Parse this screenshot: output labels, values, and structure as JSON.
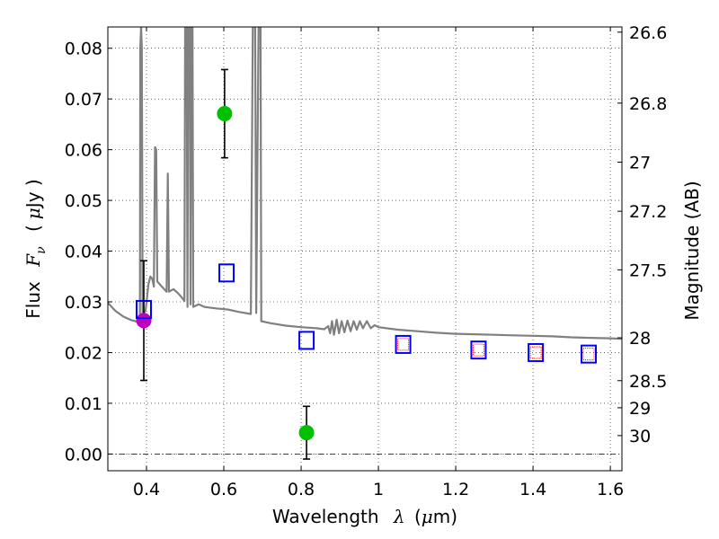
{
  "chart_data": {
    "type": "scatter",
    "title": "",
    "xlabel": "Wavelength",
    "xlabel_symbol": "λ",
    "xlabel_unit_prefix": "(",
    "xlabel_unit_mu": "μ",
    "xlabel_unit_suffix": "m)",
    "ylabel": "Flux",
    "ylabel_symbol": "F",
    "ylabel_symbol_sub": "ν",
    "ylabel_unit_prefix": "(",
    "ylabel_unit_mu": "μ",
    "ylabel_unit_suffix": "Jy )",
    "y2label": "Magnitude (AB)",
    "xlim": [
      0.3,
      1.63
    ],
    "ylim": [
      -0.0033,
      0.0842
    ],
    "grid": true,
    "x_ticks": [
      {
        "value": 0.4,
        "label": "0.4"
      },
      {
        "value": 0.6,
        "label": "0.6"
      },
      {
        "value": 0.8,
        "label": "0.8"
      },
      {
        "value": 1.0,
        "label": "1"
      },
      {
        "value": 1.2,
        "label": "1.2"
      },
      {
        "value": 1.4,
        "label": "1.4"
      },
      {
        "value": 1.6,
        "label": "1.6"
      }
    ],
    "y_ticks": [
      {
        "value": 0.0,
        "label": "0.00"
      },
      {
        "value": 0.01,
        "label": "0.01"
      },
      {
        "value": 0.02,
        "label": "0.02"
      },
      {
        "value": 0.03,
        "label": "0.03"
      },
      {
        "value": 0.04,
        "label": "0.04"
      },
      {
        "value": 0.05,
        "label": "0.05"
      },
      {
        "value": 0.06,
        "label": "0.06"
      },
      {
        "value": 0.07,
        "label": "0.07"
      },
      {
        "value": 0.08,
        "label": "0.08"
      }
    ],
    "y2_ticks": [
      {
        "value": 26.6,
        "label": "26.6"
      },
      {
        "value": 26.8,
        "label": "26.8"
      },
      {
        "value": 27.0,
        "label": "27"
      },
      {
        "value": 27.2,
        "label": "27.2"
      },
      {
        "value": 27.5,
        "label": "27.5"
      },
      {
        "value": 28.0,
        "label": "28"
      },
      {
        "value": 28.5,
        "label": "28.5"
      },
      {
        "value": 29.0,
        "label": "29"
      },
      {
        "value": 30.0,
        "label": "30"
      }
    ],
    "series": [
      {
        "name": "template-spectrum",
        "kind": "line",
        "color": "#808080",
        "points": [
          [
            0.3,
            0.0298
          ],
          [
            0.32,
            0.0282
          ],
          [
            0.34,
            0.0271
          ],
          [
            0.36,
            0.0264
          ],
          [
            0.375,
            0.0261
          ],
          [
            0.383,
            0.0262
          ],
          [
            0.384,
            0.08
          ],
          [
            0.386,
            0.0843
          ],
          [
            0.388,
            0.08
          ],
          [
            0.39,
            0.0268
          ],
          [
            0.398,
            0.0285
          ],
          [
            0.405,
            0.0335
          ],
          [
            0.41,
            0.035
          ],
          [
            0.415,
            0.0345
          ],
          [
            0.419,
            0.033
          ],
          [
            0.422,
            0.0605
          ],
          [
            0.425,
            0.06
          ],
          [
            0.428,
            0.034
          ],
          [
            0.44,
            0.033
          ],
          [
            0.452,
            0.032
          ],
          [
            0.455,
            0.0553
          ],
          [
            0.458,
            0.032
          ],
          [
            0.47,
            0.0325
          ],
          [
            0.48,
            0.0318
          ],
          [
            0.49,
            0.031
          ],
          [
            0.498,
            0.0302
          ],
          [
            0.5,
            0.0843
          ],
          [
            0.504,
            0.0843
          ],
          [
            0.506,
            0.029
          ],
          [
            0.508,
            0.0843
          ],
          [
            0.512,
            0.0843
          ],
          [
            0.514,
            0.0295
          ],
          [
            0.516,
            0.0843
          ],
          [
            0.519,
            0.0843
          ],
          [
            0.521,
            0.029
          ],
          [
            0.535,
            0.0295
          ],
          [
            0.55,
            0.029
          ],
          [
            0.58,
            0.0287
          ],
          [
            0.61,
            0.0285
          ],
          [
            0.64,
            0.028
          ],
          [
            0.67,
            0.0276
          ],
          [
            0.675,
            0.0843
          ],
          [
            0.681,
            0.0843
          ],
          [
            0.684,
            0.0278
          ],
          [
            0.69,
            0.0843
          ],
          [
            0.695,
            0.0843
          ],
          [
            0.697,
            0.0262
          ],
          [
            0.72,
            0.0258
          ],
          [
            0.76,
            0.0253
          ],
          [
            0.8,
            0.025
          ],
          [
            0.84,
            0.0248
          ],
          [
            0.86,
            0.0246
          ],
          [
            0.87,
            0.0252
          ],
          [
            0.875,
            0.0238
          ],
          [
            0.88,
            0.0262
          ],
          [
            0.885,
            0.0235
          ],
          [
            0.892,
            0.0265
          ],
          [
            0.898,
            0.0238
          ],
          [
            0.905,
            0.0262
          ],
          [
            0.912,
            0.024
          ],
          [
            0.92,
            0.0263
          ],
          [
            0.928,
            0.0242
          ],
          [
            0.936,
            0.0262
          ],
          [
            0.944,
            0.0245
          ],
          [
            0.952,
            0.0262
          ],
          [
            0.96,
            0.0248
          ],
          [
            0.97,
            0.0262
          ],
          [
            0.98,
            0.0248
          ],
          [
            0.99,
            0.0254
          ],
          [
            1.0,
            0.025
          ],
          [
            1.05,
            0.0245
          ],
          [
            1.1,
            0.0242
          ],
          [
            1.15,
            0.0239
          ],
          [
            1.2,
            0.0237
          ],
          [
            1.25,
            0.0236
          ],
          [
            1.3,
            0.0235
          ],
          [
            1.35,
            0.0234
          ],
          [
            1.4,
            0.0233
          ],
          [
            1.45,
            0.0232
          ],
          [
            1.5,
            0.023
          ],
          [
            1.55,
            0.0229
          ],
          [
            1.6,
            0.0228
          ],
          [
            1.63,
            0.0227
          ]
        ]
      },
      {
        "name": "photometry-green",
        "kind": "errorbar",
        "color": "#00c000",
        "points": [
          {
            "x": 0.602,
            "y": 0.0671,
            "yerr": 0.0087
          },
          {
            "x": 0.814,
            "y": 0.0042,
            "yerr": 0.0052
          }
        ]
      },
      {
        "name": "photometry-magenta",
        "kind": "errorbar",
        "color": "#c000c0",
        "points": [
          {
            "x": 0.393,
            "y": 0.0263,
            "yerr": 0.0118
          }
        ]
      },
      {
        "name": "model-blue-squares",
        "kind": "open-square",
        "color": "#0000ff",
        "points": [
          {
            "x": 0.393,
            "y": 0.0285
          },
          {
            "x": 0.607,
            "y": 0.0357
          },
          {
            "x": 0.814,
            "y": 0.0224
          },
          {
            "x": 1.064,
            "y": 0.0216
          },
          {
            "x": 1.259,
            "y": 0.0205
          },
          {
            "x": 1.407,
            "y": 0.02
          },
          {
            "x": 1.544,
            "y": 0.0197
          }
        ]
      },
      {
        "name": "model-red-squares",
        "kind": "small-open-square",
        "color": "#ff0000",
        "points": [
          {
            "x": 1.064,
            "y": 0.0216
          },
          {
            "x": 1.259,
            "y": 0.0205
          },
          {
            "x": 1.407,
            "y": 0.02
          },
          {
            "x": 1.544,
            "y": 0.0197
          }
        ]
      }
    ]
  }
}
